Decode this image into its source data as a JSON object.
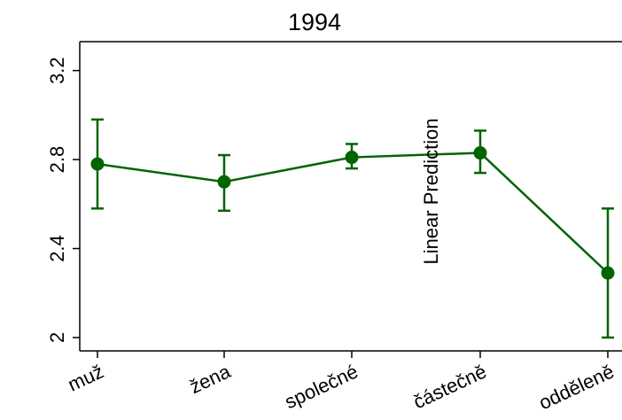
{
  "chart_data": {
    "type": "line",
    "title": "1994",
    "xlabel": "",
    "ylabel": "",
    "categories": [
      "muž",
      "žena",
      "společné",
      "částečně",
      "odděleně"
    ],
    "series": [
      {
        "values": [
          2.78,
          2.7,
          2.81,
          2.83,
          2.29
        ],
        "ci_low": [
          2.58,
          2.57,
          2.76,
          2.74,
          2.0
        ],
        "ci_high": [
          2.98,
          2.82,
          2.87,
          2.93,
          2.58
        ],
        "color": "#006400"
      }
    ],
    "yticks": [
      2,
      2.4,
      2.8,
      3.2
    ],
    "ytick_labels": [
      "2",
      "2.4",
      "2.8",
      "3.2"
    ],
    "ylim": [
      1.94,
      3.33
    ],
    "annotation": "Linear Prediction",
    "grid": false,
    "legend": "none"
  }
}
